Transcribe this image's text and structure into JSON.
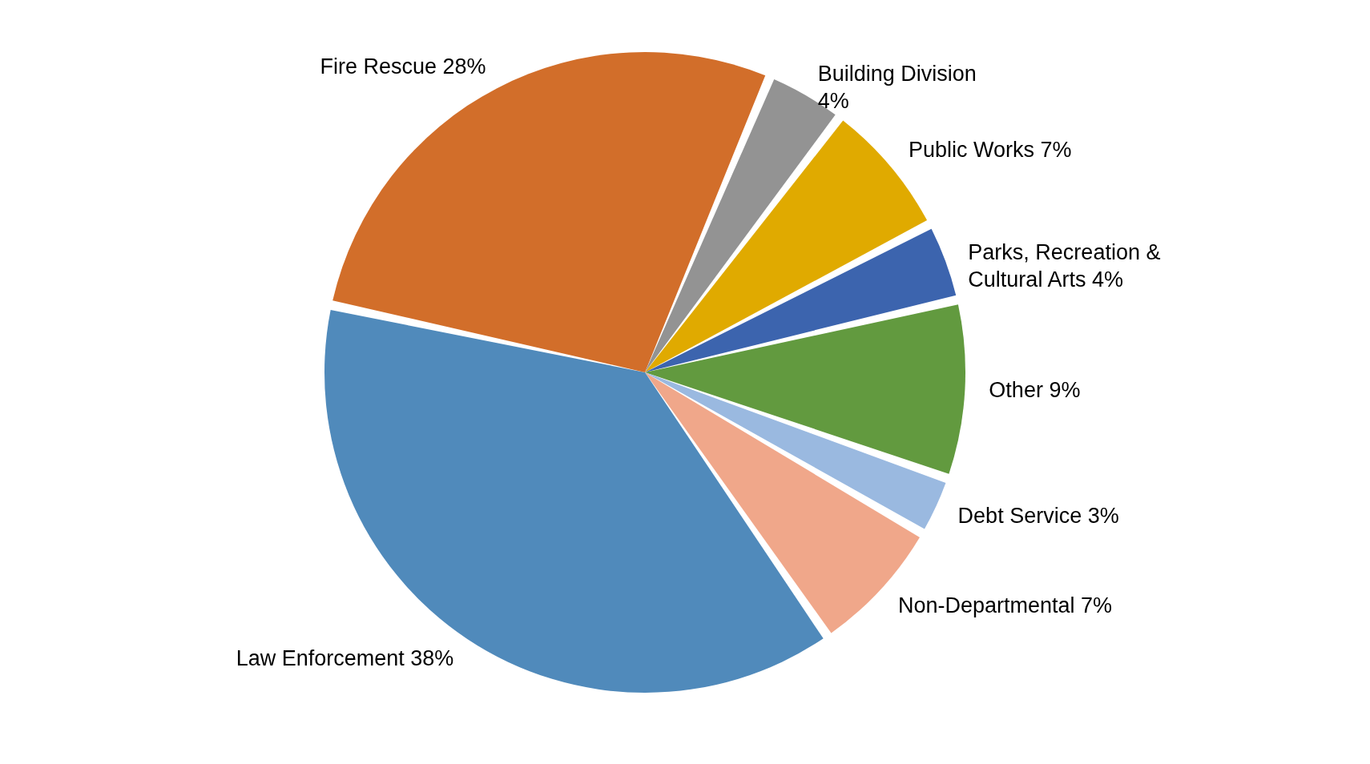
{
  "chart_data": {
    "type": "pie",
    "categories": [
      "Building  Division",
      "Public Works ",
      "Parks, Recreation & Cultural Arts",
      "Other",
      "Debt Service ",
      "Non-Departmental",
      "Law Enforcement",
      "Fire Rescue"
    ],
    "values": [
      4,
      7,
      4,
      9,
      3,
      7,
      38,
      28
    ],
    "value_labels": [
      "4%",
      "7%",
      "4%",
      "9%",
      "3%",
      "7%",
      "38%",
      "28%"
    ],
    "colors": [
      "#939393",
      "#e0aa00",
      "#3c64ae",
      "#629a3f",
      "#9ab9e0",
      "#f0a78a",
      "#508abb",
      "#d26e2a"
    ],
    "legend": false
  }
}
